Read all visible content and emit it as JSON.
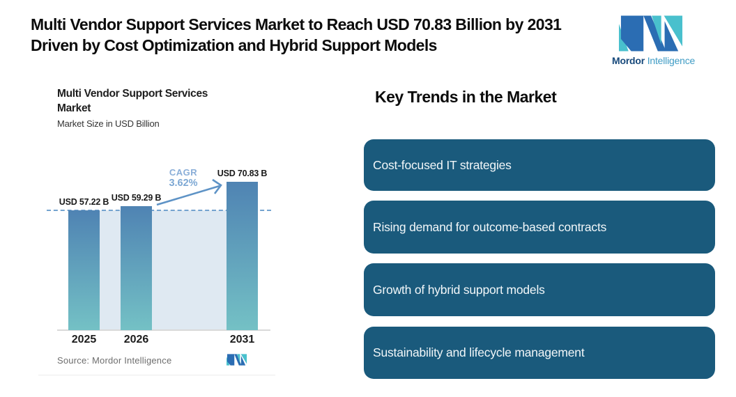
{
  "header": {
    "headline": "Multi Vendor Support Services Market to Reach USD 70.83 Billion by 2031 Driven by Cost Optimization and Hybrid Support Models"
  },
  "logo": {
    "brand_primary": "Mordor",
    "brand_secondary": "Intelligence",
    "teal": "#49c0cd",
    "blue": "#2b6db3"
  },
  "chart": {
    "title": "Multi Vendor Support Services Market",
    "subtitle": "Market Size in USD Billion",
    "source": "Source: Mordor Intelligence"
  },
  "chart_data": {
    "type": "bar",
    "title": "Multi Vendor Support Services Market",
    "subtitle": "Market Size in USD Billion",
    "unit": "USD Billion",
    "categories": [
      "2025",
      "2026",
      "2031"
    ],
    "values": [
      57.22,
      59.29,
      70.83
    ],
    "value_labels": [
      "USD 57.22 B",
      "USD 59.29 B",
      "USD 70.83 B"
    ],
    "cagr_label": "CAGR",
    "cagr_value": "3.62%",
    "ylim": [
      0,
      70.83
    ],
    "reference_dashed_line_at": 57.22,
    "grid": false,
    "legend": false,
    "bar_color_top": "#4f83b3",
    "bar_color_bottom": "#74c1c5",
    "plot_panel_color": "#dfe9f2",
    "source": "Source: Mordor Intelligence"
  },
  "trends": {
    "heading": "Key Trends in the Market",
    "box_color": "#1a5a7c",
    "items": [
      "Cost-focused IT strategies",
      "Rising demand for outcome-based contracts",
      "Growth of hybrid support models",
      "Sustainability and lifecycle management"
    ]
  }
}
